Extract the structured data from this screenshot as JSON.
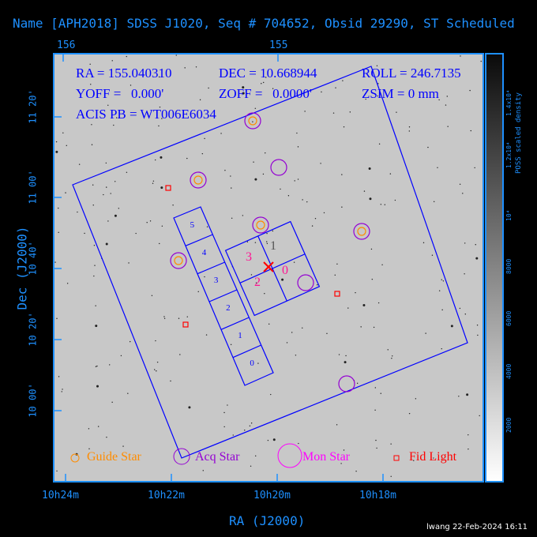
{
  "title": "Name [APH2018] SDSS J1020, Seq # 704652, Obsid 29290, ST Scheduled",
  "top_ticks": [
    {
      "label": "156",
      "deg": 156
    },
    {
      "label": "155",
      "deg": 155
    }
  ],
  "bottom_ticks": [
    "10h24m",
    "10h22m",
    "10h20m",
    "10h18m"
  ],
  "left_ticks": [
    "11 20'",
    "11 00'",
    "10 40'",
    "10 20'",
    "10 00'"
  ],
  "xlabel": "RA (J2000)",
  "ylabel": "Dec (J2000)",
  "colorbar": {
    "label": "POSS scaled density",
    "ticks": [
      "2000",
      "4000",
      "6000",
      "8000",
      "10⁴",
      "1.2x10⁴",
      "1.4x10⁴"
    ]
  },
  "info": {
    "ra": "RA = 155.040310",
    "dec": "DEC = 10.668944",
    "roll": "ROLL = 246.7135",
    "yoff": "YOFF =   0.000'",
    "zoff": "ZOFF =   0.0000'",
    "zsim": "ZSIM = 0 mm",
    "acis": "ACIS PB = WT006E6034"
  },
  "chips_s": [
    "5",
    "4",
    "3",
    "2",
    "1",
    "0"
  ],
  "chips_i": [
    "3",
    "1",
    "2",
    "0"
  ],
  "legend": {
    "guide": "Guide Star",
    "acq": "Acq Star",
    "mon": "Mon Star",
    "fid": "Fid Light"
  },
  "colors": {
    "axis": "#1e90ff",
    "field": "#0000ff",
    "guide": "#ff8c00",
    "acq": "#9400d3",
    "mon": "#ff00ff",
    "fid": "#ff0000"
  },
  "footer": "lwang 22-Feb-2024 16:11"
}
